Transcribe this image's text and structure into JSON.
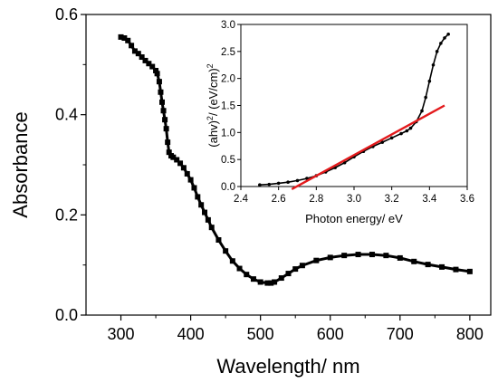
{
  "chart_data": [
    {
      "type": "scatter",
      "xlabel": "Wavelength/ nm",
      "ylabel": "Absorbance",
      "xlim": [
        250,
        830
      ],
      "ylim": [
        0.0,
        0.6
      ],
      "xticks": [
        300,
        400,
        500,
        600,
        700,
        800
      ],
      "xtick_labels": [
        "300",
        "400",
        "500",
        "600",
        "700",
        "800"
      ],
      "yticks": [
        0.0,
        0.2,
        0.4,
        0.6
      ],
      "ytick_labels": [
        "0.0",
        "0.2",
        "0.4",
        "0.6"
      ],
      "grid": false,
      "marker": "square",
      "color": "#000000",
      "series": [
        {
          "x": [
            300,
            305,
            310,
            315,
            320,
            325,
            330,
            335,
            340,
            345,
            350,
            352,
            355,
            357,
            359,
            361,
            363,
            365,
            367,
            369,
            372,
            375,
            380,
            385,
            390,
            395,
            400,
            405,
            410,
            415,
            420,
            425,
            430,
            440,
            450,
            460,
            470,
            480,
            490,
            500,
            510,
            515,
            520,
            530,
            540,
            550,
            560,
            580,
            600,
            620,
            640,
            660,
            680,
            700,
            720,
            740,
            760,
            780,
            800
          ],
          "y": [
            0.555,
            0.553,
            0.548,
            0.538,
            0.527,
            0.522,
            0.515,
            0.508,
            0.502,
            0.496,
            0.488,
            0.482,
            0.466,
            0.445,
            0.425,
            0.408,
            0.39,
            0.372,
            0.345,
            0.325,
            0.318,
            0.315,
            0.31,
            0.303,
            0.294,
            0.282,
            0.27,
            0.254,
            0.236,
            0.22,
            0.205,
            0.19,
            0.175,
            0.15,
            0.128,
            0.108,
            0.093,
            0.081,
            0.072,
            0.066,
            0.064,
            0.064,
            0.066,
            0.074,
            0.083,
            0.092,
            0.099,
            0.109,
            0.115,
            0.119,
            0.121,
            0.121,
            0.119,
            0.114,
            0.107,
            0.101,
            0.096,
            0.091,
            0.087
          ]
        }
      ]
    },
    {
      "type": "line",
      "xlabel": "Photon energy/ eV",
      "ylabel_parts": [
        "(ahv)",
        "2",
        "/ (eV/cm)",
        "2"
      ],
      "xlim": [
        2.4,
        3.6
      ],
      "ylim": [
        0.0,
        3.0
      ],
      "xticks": [
        2.4,
        2.6,
        2.8,
        3.0,
        3.2,
        3.4,
        3.6
      ],
      "xtick_labels": [
        "2.4",
        "2.6",
        "2.8",
        "3.0",
        "3.2",
        "3.4",
        "3.6"
      ],
      "yticks": [
        0.0,
        0.5,
        1.0,
        1.5,
        2.0,
        2.5,
        3.0
      ],
      "ytick_labels": [
        "0.0",
        "0.5",
        "1.0",
        "1.5",
        "2.0",
        "2.5",
        "3.0"
      ],
      "grid": false,
      "series": [
        {
          "style": "dotted-line",
          "color": "#000000",
          "x": [
            2.5,
            2.55,
            2.6,
            2.65,
            2.7,
            2.75,
            2.8,
            2.85,
            2.9,
            2.95,
            3.0,
            3.05,
            3.1,
            3.15,
            3.2,
            3.25,
            3.28,
            3.3,
            3.33,
            3.36,
            3.38,
            3.4,
            3.42,
            3.44,
            3.46,
            3.48,
            3.5
          ],
          "y": [
            0.03,
            0.04,
            0.06,
            0.08,
            0.11,
            0.15,
            0.2,
            0.27,
            0.35,
            0.44,
            0.55,
            0.65,
            0.74,
            0.82,
            0.9,
            0.98,
            1.03,
            1.08,
            1.2,
            1.4,
            1.65,
            1.95,
            2.25,
            2.5,
            2.65,
            2.75,
            2.82
          ]
        },
        {
          "style": "line",
          "color": "#e31a1c",
          "x": [
            2.67,
            3.48
          ],
          "y": [
            -0.05,
            1.5
          ]
        }
      ]
    }
  ]
}
